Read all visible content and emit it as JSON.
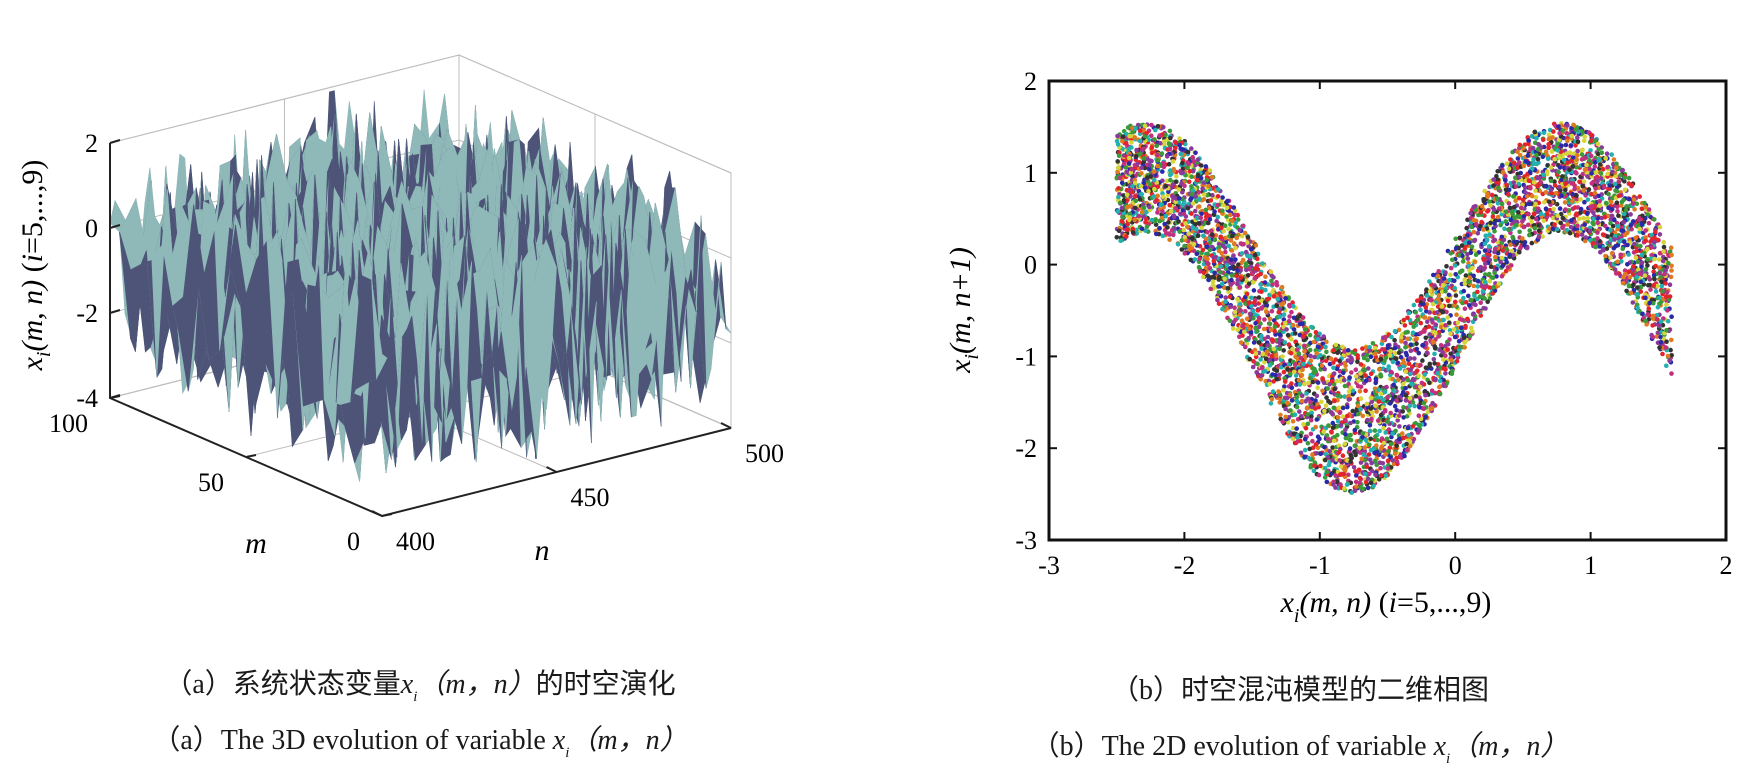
{
  "chart_data": [
    {
      "type": "surface3d",
      "panel": "a",
      "zlabel": "xi(m, n) (i=5,...,9)",
      "xlabel": "n",
      "ylabel": "m",
      "n_range": [
        400,
        500
      ],
      "m_range": [
        0,
        100
      ],
      "z_range": [
        -4,
        2
      ],
      "n_ticks": [
        400,
        450,
        500
      ],
      "m_ticks": [
        0,
        50,
        100
      ],
      "z_ticks": [
        -4,
        -2,
        0,
        2
      ],
      "colors": [
        "#4d5478",
        "#8fb8b8"
      ],
      "grid": true,
      "caption_cn_text": "系统状态变量",
      "caption_cn_var": "x",
      "caption_cn_sub": "i",
      "caption_cn_args": "（m，n）",
      "caption_cn_tail": "的时空演化",
      "caption_en_text": "The 3D evolution of variable ",
      "caption_en_var": "x",
      "caption_en_sub": "i",
      "caption_en_args": "（m，n）"
    },
    {
      "type": "scatter",
      "panel": "b",
      "xlabel": "xi(m, n) (i=5,...,9)",
      "ylabel": "xi(m, n+1)",
      "xlim": [
        -3,
        2
      ],
      "ylim": [
        -3,
        2
      ],
      "x_ticks": [
        -3,
        -2,
        -1,
        0,
        1,
        2
      ],
      "y_ticks": [
        -3,
        -2,
        -1,
        0,
        1,
        2
      ],
      "x_data_range": [
        -2.5,
        1.6
      ],
      "y_upper_range": [
        -0.9,
        1.55
      ],
      "y_lower_range": [
        -2.5,
        0.35
      ],
      "map_x_of_min": -0.75,
      "map_x_of_max": 0.78,
      "colors": [
        "#e3242b",
        "#3a9a3a",
        "#2a2aa8",
        "#8a3a9a",
        "#d6d63a",
        "#22b0b0",
        "#333333",
        "#e07a20",
        "#c03080"
      ],
      "grid": false,
      "caption_text": "时空混沌模型的二维相图",
      "caption_en_text": "The 2D evolution of variable ",
      "caption_en_var": "x",
      "caption_en_sub": "i",
      "caption_en_args": "（m，n）"
    }
  ],
  "captions": {
    "a_label": "（a）",
    "b_label": "（b）"
  }
}
